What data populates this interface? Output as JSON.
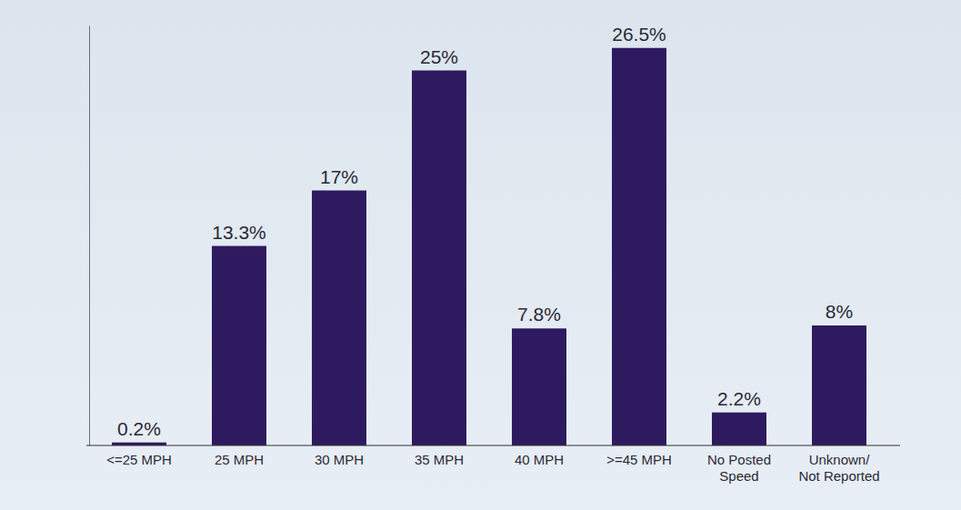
{
  "chart_data": {
    "type": "bar",
    "categories": [
      "<=25 MPH",
      "25 MPH",
      "30 MPH",
      "35 MPH",
      "40 MPH",
      ">=45 MPH",
      "No Posted Speed",
      "Unknown/ Not Reported"
    ],
    "values": [
      0.2,
      13.3,
      17,
      25,
      7.8,
      26.5,
      2.2,
      8
    ],
    "value_labels": [
      "0.2%",
      "13.3%",
      "17%",
      "25%",
      "7.8%",
      "26.5%",
      "2.2%",
      "8%"
    ],
    "color": "#2e1a5e",
    "ylim": [
      0,
      28
    ],
    "data_labels": true,
    "tick_labels": "x",
    "grid": false
  }
}
